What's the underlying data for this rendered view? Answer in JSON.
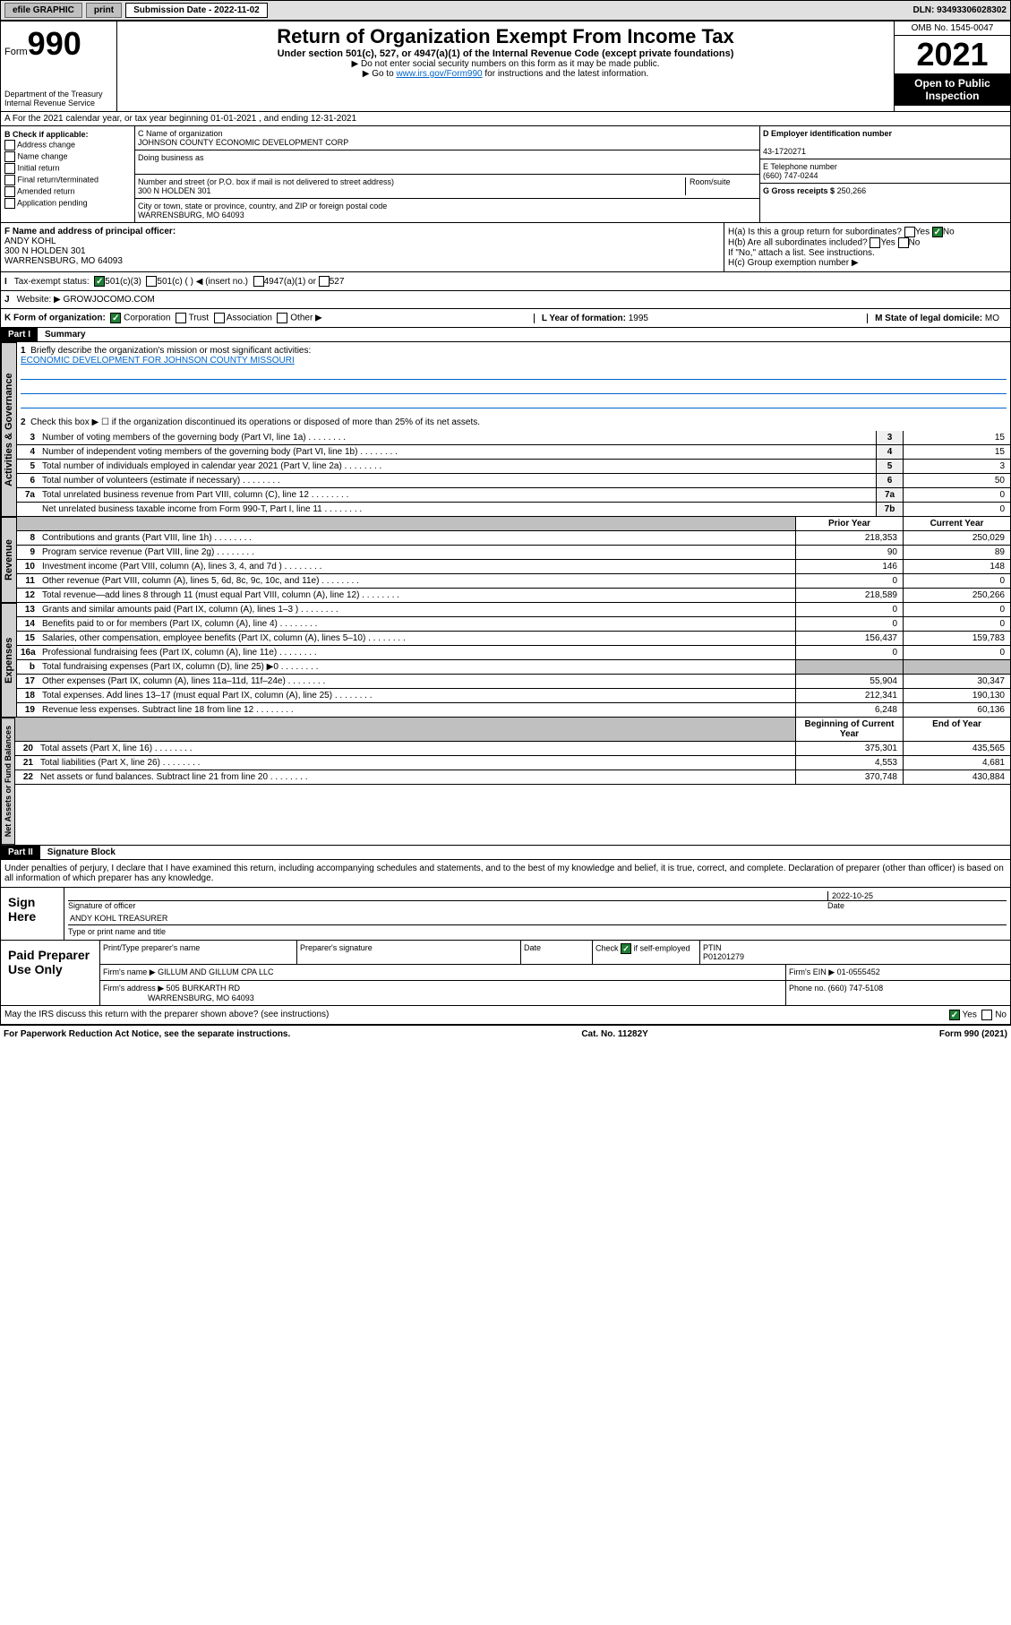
{
  "topbar": {
    "efile": "efile GRAPHIC",
    "print": "print",
    "submission_label": "Submission Date - 2022-11-02",
    "dln": "DLN: 93493306028302"
  },
  "header": {
    "form_prefix": "Form",
    "form_number": "990",
    "dept": "Department of the Treasury",
    "irs": "Internal Revenue Service",
    "title": "Return of Organization Exempt From Income Tax",
    "subtitle": "Under section 501(c), 527, or 4947(a)(1) of the Internal Revenue Code (except private foundations)",
    "note1": "▶ Do not enter social security numbers on this form as it may be made public.",
    "note2_pre": "▶ Go to ",
    "note2_link": "www.irs.gov/Form990",
    "note2_post": " for instructions and the latest information.",
    "omb": "OMB No. 1545-0047",
    "year": "2021",
    "inspection": "Open to Public Inspection"
  },
  "row_a": "A For the 2021 calendar year, or tax year beginning 01-01-2021   , and ending 12-31-2021",
  "section_b": {
    "label": "B Check if applicable:",
    "items": [
      "Address change",
      "Name change",
      "Initial return",
      "Final return/terminated",
      "Amended return",
      "Application pending"
    ]
  },
  "section_c": {
    "name_label": "C Name of organization",
    "name": "JOHNSON COUNTY ECONOMIC DEVELOPMENT CORP",
    "dba_label": "Doing business as",
    "addr_label": "Number and street (or P.O. box if mail is not delivered to street address)",
    "room_label": "Room/suite",
    "addr": "300 N HOLDEN 301",
    "city_label": "City or town, state or province, country, and ZIP or foreign postal code",
    "city": "WARRENSBURG, MO  64093"
  },
  "section_d": {
    "ein_label": "D Employer identification number",
    "ein": "43-1720271",
    "phone_label": "E Telephone number",
    "phone": "(660) 747-0244",
    "gross_label": "G Gross receipts $",
    "gross": "250,266"
  },
  "section_f": {
    "label": "F Name and address of principal officer:",
    "name": "ANDY KOHL",
    "addr1": "300 N HOLDEN 301",
    "addr2": "WARRENSBURG, MO  64093"
  },
  "section_h": {
    "a_label": "H(a)  Is this a group return for subordinates?",
    "b_label": "H(b)  Are all subordinates included?",
    "note": "If \"No,\" attach a list. See instructions.",
    "c_label": "H(c)  Group exemption number ▶",
    "yes": "Yes",
    "no": "No"
  },
  "row_i": {
    "label": "Tax-exempt status:",
    "opt1": "501(c)(3)",
    "opt2": "501(c) (  ) ◀ (insert no.)",
    "opt3": "4947(a)(1) or",
    "opt4": "527"
  },
  "row_j": {
    "label": "Website: ▶",
    "value": "GROWJOCOMO.COM"
  },
  "row_k": {
    "label": "K Form of organization:",
    "opts": [
      "Corporation",
      "Trust",
      "Association",
      "Other ▶"
    ],
    "l_label": "L Year of formation:",
    "l_value": "1995",
    "m_label": "M State of legal domicile:",
    "m_value": "MO"
  },
  "part1": {
    "header": "Part I",
    "title": "Summary",
    "line1_label": "Briefly describe the organization's mission or most significant activities:",
    "line1_text": "ECONOMIC DEVELOPMENT FOR JOHNSON COUNTY MISSOURI",
    "line2": "Check this box ▶ ☐  if the organization discontinued its operations or disposed of more than 25% of its net assets.",
    "governance_label": "Activities & Governance",
    "revenue_label": "Revenue",
    "expenses_label": "Expenses",
    "netassets_label": "Net Assets or Fund Balances",
    "prior_year": "Prior Year",
    "current_year": "Current Year",
    "beginning": "Beginning of Current Year",
    "end": "End of Year",
    "lines_gov": [
      {
        "n": "3",
        "d": "Number of voting members of the governing body (Part VI, line 1a)",
        "box": "3",
        "v": "15"
      },
      {
        "n": "4",
        "d": "Number of independent voting members of the governing body (Part VI, line 1b)",
        "box": "4",
        "v": "15"
      },
      {
        "n": "5",
        "d": "Total number of individuals employed in calendar year 2021 (Part V, line 2a)",
        "box": "5",
        "v": "3"
      },
      {
        "n": "6",
        "d": "Total number of volunteers (estimate if necessary)",
        "box": "6",
        "v": "50"
      },
      {
        "n": "7a",
        "d": "Total unrelated business revenue from Part VIII, column (C), line 12",
        "box": "7a",
        "v": "0"
      },
      {
        "n": "",
        "d": "Net unrelated business taxable income from Form 990-T, Part I, line 11",
        "box": "7b",
        "v": "0"
      }
    ],
    "lines_rev": [
      {
        "n": "8",
        "d": "Contributions and grants (Part VIII, line 1h)",
        "p": "218,353",
        "c": "250,029"
      },
      {
        "n": "9",
        "d": "Program service revenue (Part VIII, line 2g)",
        "p": "90",
        "c": "89"
      },
      {
        "n": "10",
        "d": "Investment income (Part VIII, column (A), lines 3, 4, and 7d )",
        "p": "146",
        "c": "148"
      },
      {
        "n": "11",
        "d": "Other revenue (Part VIII, column (A), lines 5, 6d, 8c, 9c, 10c, and 11e)",
        "p": "0",
        "c": "0"
      },
      {
        "n": "12",
        "d": "Total revenue—add lines 8 through 11 (must equal Part VIII, column (A), line 12)",
        "p": "218,589",
        "c": "250,266"
      }
    ],
    "lines_exp": [
      {
        "n": "13",
        "d": "Grants and similar amounts paid (Part IX, column (A), lines 1–3 )",
        "p": "0",
        "c": "0"
      },
      {
        "n": "14",
        "d": "Benefits paid to or for members (Part IX, column (A), line 4)",
        "p": "0",
        "c": "0"
      },
      {
        "n": "15",
        "d": "Salaries, other compensation, employee benefits (Part IX, column (A), lines 5–10)",
        "p": "156,437",
        "c": "159,783"
      },
      {
        "n": "16a",
        "d": "Professional fundraising fees (Part IX, column (A), line 11e)",
        "p": "0",
        "c": "0"
      },
      {
        "n": "b",
        "d": "Total fundraising expenses (Part IX, column (D), line 25) ▶0",
        "p": "",
        "c": "",
        "shaded": true
      },
      {
        "n": "17",
        "d": "Other expenses (Part IX, column (A), lines 11a–11d, 11f–24e)",
        "p": "55,904",
        "c": "30,347"
      },
      {
        "n": "18",
        "d": "Total expenses. Add lines 13–17 (must equal Part IX, column (A), line 25)",
        "p": "212,341",
        "c": "190,130"
      },
      {
        "n": "19",
        "d": "Revenue less expenses. Subtract line 18 from line 12",
        "p": "6,248",
        "c": "60,136"
      }
    ],
    "lines_net": [
      {
        "n": "20",
        "d": "Total assets (Part X, line 16)",
        "p": "375,301",
        "c": "435,565"
      },
      {
        "n": "21",
        "d": "Total liabilities (Part X, line 26)",
        "p": "4,553",
        "c": "4,681"
      },
      {
        "n": "22",
        "d": "Net assets or fund balances. Subtract line 21 from line 20",
        "p": "370,748",
        "c": "430,884"
      }
    ]
  },
  "part2": {
    "header": "Part II",
    "title": "Signature Block",
    "declaration": "Under penalties of perjury, I declare that I have examined this return, including accompanying schedules and statements, and to the best of my knowledge and belief, it is true, correct, and complete. Declaration of preparer (other than officer) is based on all information of which preparer has any knowledge.",
    "sign_here": "Sign Here",
    "sig_officer": "Signature of officer",
    "date_label": "Date",
    "date": "2022-10-25",
    "officer_name": "ANDY KOHL TREASURER",
    "type_name": "Type or print name and title",
    "paid_label": "Paid Preparer Use Only",
    "prep_name_label": "Print/Type preparer's name",
    "prep_sig_label": "Preparer's signature",
    "check_if": "Check",
    "self_emp": "if self-employed",
    "ptin_label": "PTIN",
    "ptin": "P01201279",
    "firm_name_label": "Firm's name    ▶",
    "firm_name": "GILLUM AND GILLUM CPA LLC",
    "firm_ein_label": "Firm's EIN ▶",
    "firm_ein": "01-0555452",
    "firm_addr_label": "Firm's address ▶",
    "firm_addr1": "505 BURKARTH RD",
    "firm_addr2": "WARRENSBURG, MO  64093",
    "firm_phone_label": "Phone no.",
    "firm_phone": "(660) 747-5108",
    "discuss": "May the IRS discuss this return with the preparer shown above? (see instructions)"
  },
  "footer": {
    "left": "For Paperwork Reduction Act Notice, see the separate instructions.",
    "mid": "Cat. No. 11282Y",
    "right": "Form 990 (2021)"
  }
}
